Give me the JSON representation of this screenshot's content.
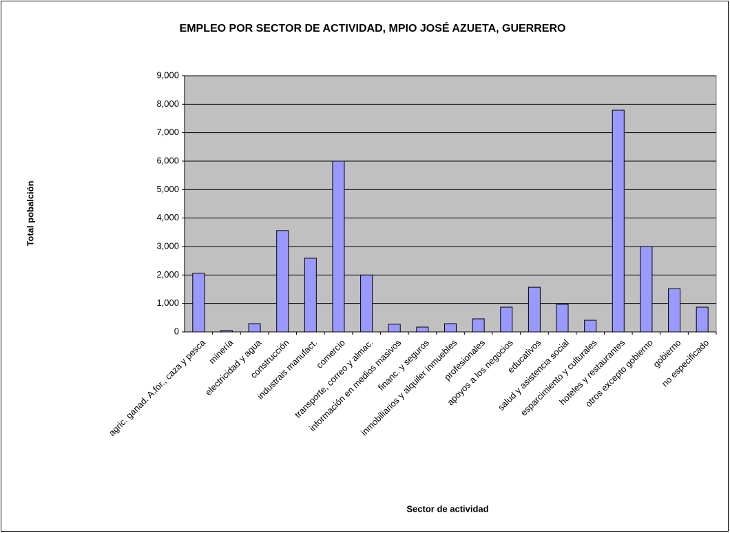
{
  "chart_data": {
    "type": "bar",
    "title": "EMPLEO POR SECTOR DE ACTIVIDAD, MPIO JOSÉ AZUETA, GUERRERO",
    "y_label": "Total pobalción",
    "x_label": "Sector de actividad",
    "categories": [
      "agric. ganad. A.for., caza y pesca",
      "minería",
      "electricidad y agua",
      "construcción",
      "industrais manufact.",
      "comercio",
      "transporte, correo y almac.",
      "información en medios masivos",
      "financ. y seguros",
      "inmobiliarios y alquiler inmuebles",
      "profesionales",
      "apoyos a los negocios",
      "educativos",
      "salud y asistencia social",
      "esparcimiento y culturales",
      "hoteles y restaurantes",
      "otros excepto gobierno",
      "gobierno",
      "no especificado"
    ],
    "values": [
      2060,
      50,
      290,
      3560,
      2590,
      6000,
      2000,
      270,
      170,
      290,
      460,
      870,
      1570,
      970,
      410,
      7790,
      3000,
      1520,
      870
    ],
    "color": "#9999ff",
    "ylim": [
      0,
      9000
    ],
    "yticks": [
      0,
      {
        "value": 1000,
        "label": "1,000"
      },
      {
        "value": 2000,
        "label": "2,000"
      },
      {
        "value": 3000,
        "label": "3,000"
      },
      {
        "value": 4000,
        "label": "4,000"
      },
      {
        "value": 5000,
        "label": "5,000"
      },
      {
        "value": 6000,
        "label": "6,000"
      },
      {
        "value": 7000,
        "label": "7,000"
      },
      {
        "value": 8000,
        "label": "8,000"
      },
      {
        "value": 9000,
        "label": "9,000"
      }
    ],
    "grid": true
  }
}
